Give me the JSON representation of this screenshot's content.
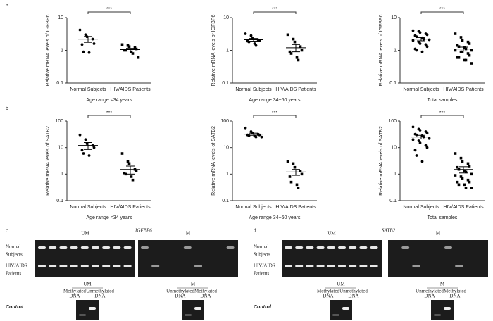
{
  "chart_data": [
    {
      "type": "dotplot",
      "panel": "a",
      "ylabel": "Relative mRNA levels of IGFBP6",
      "xlabel": "Age range <34 years",
      "categories": [
        "Normal Subjects",
        "HIV/AIDS Patients"
      ],
      "annotation": "***",
      "log_scale": true,
      "ylim": [
        0.1,
        10
      ],
      "yticks": [
        0.1,
        1,
        10
      ],
      "color": "#000000",
      "points": [
        [
          4.2,
          3.0,
          2.6,
          2.2,
          1.6,
          1.5,
          0.9,
          0.85
        ],
        [
          1.5,
          1.4,
          1.3,
          1.2,
          1.1,
          1.0,
          1.0,
          0.9,
          0.8,
          0.6
        ]
      ],
      "means": [
        2.2,
        1.05
      ],
      "errors": [
        0.45,
        0.1
      ]
    },
    {
      "type": "dotplot",
      "ylabel": "Relative mRNA levels of IGFBP6",
      "xlabel": "Age range 34~60 years",
      "categories": [
        "Normal Subjects",
        "HIV/AIDS Patients"
      ],
      "annotation": "***",
      "log_scale": true,
      "ylim": [
        0.1,
        10
      ],
      "yticks": [
        0.1,
        1,
        10
      ],
      "color": "#000000",
      "points": [
        [
          3.2,
          2.8,
          2.3,
          2.1,
          2.0,
          1.9,
          1.8,
          1.6,
          1.4
        ],
        [
          3.0,
          2.2,
          1.8,
          1.3,
          1.0,
          0.9,
          0.8,
          0.6,
          0.5
        ]
      ],
      "means": [
        2.1,
        1.2
      ],
      "errors": [
        0.2,
        0.3
      ]
    },
    {
      "type": "dotplot",
      "ylabel": "Relative mRNA levels of IGFBP6",
      "xlabel": "Total samples",
      "categories": [
        "Normal Subjects",
        "HIV/AIDS Patients"
      ],
      "annotation": "***",
      "log_scale": true,
      "ylim": [
        0.1,
        10
      ],
      "yticks": [
        0.1,
        1,
        10
      ],
      "color": "#000000",
      "points": [
        [
          4.0,
          3.8,
          3.5,
          3.2,
          3.0,
          2.8,
          2.6,
          2.4,
          2.2,
          2.1,
          2.0,
          1.8,
          1.6,
          1.5,
          1.3,
          1.1,
          1.0,
          0.9
        ],
        [
          3.2,
          2.5,
          2.0,
          1.8,
          1.6,
          1.4,
          1.3,
          1.2,
          1.1,
          1.0,
          1.0,
          0.9,
          0.9,
          0.8,
          0.7,
          0.6,
          0.6,
          0.5,
          0.5,
          0.4
        ]
      ],
      "means": [
        2.2,
        1.1
      ],
      "errors": [
        0.25,
        0.15
      ]
    },
    {
      "type": "dotplot",
      "panel": "b",
      "ylabel": "Relative mRNA levels of SATB2",
      "xlabel": "Age range <34 years",
      "categories": [
        "Normal Subjects",
        "HIV/AIDS Patients"
      ],
      "annotation": "***",
      "log_scale": true,
      "ylim": [
        0.1,
        100
      ],
      "yticks": [
        0.1,
        1,
        10,
        100
      ],
      "color": "#000000",
      "points": [
        [
          30,
          20,
          14,
          12,
          10,
          8,
          6,
          5
        ],
        [
          6,
          3,
          2.5,
          1.5,
          1.3,
          1.1,
          1.0,
          0.8,
          0.6
        ]
      ],
      "means": [
        12,
        1.5
      ],
      "errors": [
        3.5,
        0.5
      ]
    },
    {
      "type": "dotplot",
      "ylabel": "Relative mRNA levels of SATB2",
      "xlabel": "Age range 34~60 years",
      "categories": [
        "Normal Subjects",
        "HIV/AIDS Patients"
      ],
      "annotation": "***",
      "log_scale": true,
      "ylim": [
        0.1,
        100
      ],
      "yticks": [
        0.1,
        1,
        10,
        100
      ],
      "color": "#000000",
      "points": [
        [
          55,
          40,
          35,
          32,
          30,
          30,
          28,
          27,
          25,
          25
        ],
        [
          3,
          2.5,
          1.8,
          1.3,
          1.0,
          0.8,
          0.5,
          0.4,
          0.3
        ]
      ],
      "means": [
        32,
        1.2
      ],
      "errors": [
        3,
        0.3
      ]
    },
    {
      "type": "dotplot",
      "ylabel": "Relative mRNA levels of SATB2",
      "xlabel": "Total samples",
      "categories": [
        "Normal Subjects",
        "HIV/AIDS Patients"
      ],
      "annotation": "***",
      "log_scale": true,
      "ylim": [
        0.1,
        100
      ],
      "yticks": [
        0.1,
        1,
        10,
        100
      ],
      "color": "#000000",
      "points": [
        [
          60,
          50,
          45,
          40,
          35,
          32,
          30,
          28,
          25,
          22,
          20,
          18,
          15,
          12,
          10,
          8,
          5,
          3
        ],
        [
          6,
          4,
          3,
          2.5,
          2,
          1.8,
          1.5,
          1.3,
          1.2,
          1.0,
          0.9,
          0.8,
          0.7,
          0.6,
          0.5,
          0.5,
          0.4,
          0.4,
          0.3,
          0.3
        ]
      ],
      "means": [
        25,
        1.5
      ],
      "errors": [
        4,
        0.4
      ]
    }
  ],
  "gels": [
    {
      "panel": "c",
      "gene": "IGFBP6",
      "um": "UM",
      "m": "M",
      "rows": [
        [
          "Normal",
          "Subjects"
        ],
        [
          "HIV/AIDS",
          "Patients"
        ]
      ],
      "control": {
        "title": "Control",
        "um": "UM",
        "um_lanes": [
          [
            "Methylated",
            "DNA"
          ],
          [
            "Unmethylated",
            "DNA"
          ]
        ],
        "m": "M",
        "m_lanes": [
          [
            "Unmethylated",
            "DNA"
          ],
          [
            "Methylated",
            "DNA"
          ]
        ]
      }
    },
    {
      "panel": "d",
      "gene": "SATB2",
      "um": "UM",
      "m": "M",
      "rows": [
        [
          "Normal",
          "Subjects"
        ],
        [
          "HIV/AIDS",
          "Patients"
        ]
      ],
      "control": {
        "title": "Control",
        "um": "UM",
        "um_lanes": [
          [
            "Methylated",
            "DNA"
          ],
          [
            "Unmethylated",
            "DNA"
          ]
        ],
        "m": "M",
        "m_lanes": [
          [
            "Unmethylated",
            "DNA"
          ],
          [
            "Methylated",
            "DNA"
          ]
        ]
      }
    }
  ]
}
